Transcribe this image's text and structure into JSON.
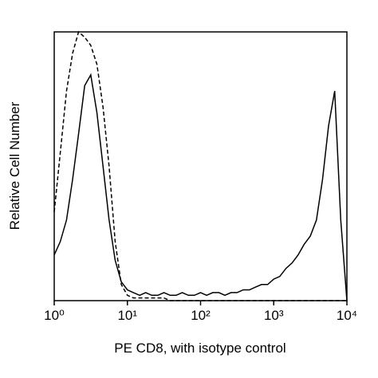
{
  "chart_data": {
    "type": "line",
    "xlabel": "PE CD8, with isotype control",
    "ylabel": "Relative Cell Number",
    "xscale": "log",
    "xlim": [
      1,
      10000
    ],
    "xticks": [
      {
        "value": 1,
        "label": "10⁰"
      },
      {
        "value": 10,
        "label": "10¹"
      },
      {
        "value": 100,
        "label": "10²"
      },
      {
        "value": 1000,
        "label": "10³"
      },
      {
        "value": 10000,
        "label": "10⁴"
      }
    ],
    "ylim": [
      0,
      100
    ],
    "x": [
      1,
      1.21,
      1.47,
      1.78,
      2.15,
      2.61,
      3.16,
      3.83,
      4.64,
      5.62,
      6.81,
      8.25,
      10,
      12.1,
      14.7,
      17.8,
      21.5,
      26.1,
      31.6,
      38.3,
      46.4,
      56.2,
      68.1,
      82.5,
      100,
      121,
      147,
      178,
      215,
      261,
      316,
      383,
      464,
      562,
      681,
      825,
      1000,
      1210,
      1470,
      1780,
      2150,
      2610,
      3160,
      3830,
      4640,
      5620,
      6810,
      8250,
      10000
    ],
    "series": [
      {
        "color": "#000000",
        "linestyle": "solid",
        "values": [
          17,
          22,
          30,
          45,
          62,
          80,
          84,
          70,
          50,
          30,
          15,
          7,
          4,
          3,
          2,
          3,
          2,
          2,
          3,
          2,
          2,
          3,
          2,
          2,
          3,
          2,
          3,
          3,
          2,
          3,
          3,
          4,
          4,
          5,
          6,
          6,
          8,
          9,
          12,
          14,
          17,
          21,
          24,
          30,
          45,
          65,
          78,
          30,
          0
        ]
      },
      {
        "color": "#000000",
        "linestyle": "dashed",
        "values": [
          33,
          55,
          78,
          92,
          100,
          98,
          95,
          88,
          72,
          50,
          22,
          6,
          2,
          1,
          1,
          1,
          1,
          1,
          1,
          0,
          0,
          0,
          0,
          0,
          0,
          0,
          0,
          0,
          0,
          0,
          0,
          0,
          0,
          0,
          0,
          0,
          0,
          0,
          0,
          0,
          0,
          0,
          0,
          0,
          0,
          0,
          0,
          0,
          0
        ]
      }
    ]
  }
}
